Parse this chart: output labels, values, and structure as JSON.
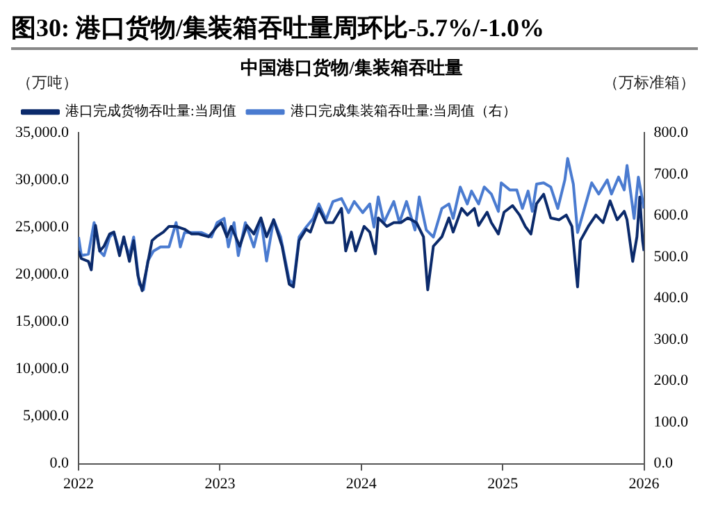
{
  "chart_data": {
    "type": "line",
    "title": "图30:  港口货物/集装箱吞吐量周环比-5.7%/-1.0%",
    "subtitle": "中国港口货物/集装箱吞吐量",
    "ylabel": "（万吨）",
    "y2label": "（万标准箱）",
    "xlim": [
      2022,
      2026
    ],
    "xticks": [
      2022,
      2023,
      2024,
      2025,
      2026
    ],
    "ylim": [
      0,
      35000
    ],
    "yticks": [
      {
        "value": 0,
        "label": "0.0"
      },
      {
        "value": 5000,
        "label": "5,000.0"
      },
      {
        "value": 10000,
        "label": "10,000.0"
      },
      {
        "value": 15000,
        "label": "15,000.0"
      },
      {
        "value": 20000,
        "label": "20,000.0"
      },
      {
        "value": 25000,
        "label": "25,000.0"
      },
      {
        "value": 30000,
        "label": "30,000.0"
      },
      {
        "value": 35000,
        "label": "35,000.0"
      }
    ],
    "y2lim": [
      0,
      800
    ],
    "y2ticks": [
      {
        "value": 0,
        "label": "0.0"
      },
      {
        "value": 100,
        "label": "100.0"
      },
      {
        "value": 200,
        "label": "200.0"
      },
      {
        "value": 300,
        "label": "300.0"
      },
      {
        "value": 400,
        "label": "400.0"
      },
      {
        "value": 500,
        "label": "500.0"
      },
      {
        "value": 600,
        "label": "600.0"
      },
      {
        "value": 700,
        "label": "700.0"
      },
      {
        "value": 800,
        "label": "800.0"
      }
    ],
    "grid": false,
    "legend": "top",
    "marker": "none",
    "line_style": "solid",
    "series": [
      {
        "name": "港口完成货物吞吐量:当周值",
        "color": "#0b2a6b",
        "x": [
          2022.0,
          2022.02,
          2022.07,
          2022.09,
          2022.12,
          2022.15,
          2022.18,
          2022.22,
          2022.25,
          2022.29,
          2022.32,
          2022.36,
          2022.39,
          2022.42,
          2022.45,
          2022.48,
          2022.52,
          2022.55,
          2022.6,
          2022.64,
          2022.69,
          2022.75,
          2022.8,
          2022.85,
          2022.92,
          2022.98,
          2023.01,
          2023.05,
          2023.08,
          2023.14,
          2023.19,
          2023.24,
          2023.29,
          2023.33,
          2023.38,
          2023.44,
          2023.49,
          2023.52,
          2023.56,
          2023.61,
          2023.64,
          2023.7,
          2023.75,
          2023.8,
          2023.86,
          2023.89,
          2023.93,
          2023.96,
          2024.02,
          2024.06,
          2024.1,
          2024.12,
          2024.18,
          2024.23,
          2024.28,
          2024.33,
          2024.39,
          2024.44,
          2024.47,
          2024.51,
          2024.57,
          2024.62,
          2024.65,
          2024.71,
          2024.75,
          2024.8,
          2024.83,
          2024.89,
          2024.92,
          2024.97,
          2025.01,
          2025.07,
          2025.12,
          2025.16,
          2025.2,
          2025.24,
          2025.29,
          2025.34,
          2025.4,
          2025.45,
          2025.49,
          2025.53,
          2025.55,
          2025.61,
          2025.66,
          2025.71,
          2025.76,
          2025.81,
          2025.86,
          2025.88,
          2025.92,
          2025.95,
          2025.97,
          2025.99,
          2026.0
        ],
        "values": [
          22500,
          21700,
          21400,
          20500,
          25200,
          22500,
          23000,
          24300,
          24500,
          22000,
          24000,
          21400,
          23600,
          19900,
          18300,
          20500,
          23600,
          24000,
          24500,
          25100,
          25100,
          24800,
          24300,
          24300,
          24000,
          25100,
          25500,
          24000,
          25100,
          23000,
          25200,
          24300,
          26000,
          24000,
          25800,
          23000,
          19000,
          18700,
          23600,
          24800,
          24500,
          27000,
          25500,
          25500,
          27000,
          22500,
          24500,
          22500,
          25100,
          24500,
          22200,
          26000,
          25100,
          25500,
          25500,
          26000,
          25500,
          24000,
          18400,
          23000,
          24000,
          26000,
          24500,
          27000,
          26300,
          27000,
          25200,
          26600,
          25500,
          24300,
          26600,
          27300,
          26300,
          25100,
          24300,
          27500,
          28500,
          26000,
          25800,
          26300,
          25100,
          18700,
          23600,
          25200,
          26300,
          25500,
          27800,
          25800,
          26700,
          25800,
          21400,
          24000,
          28200,
          23600,
          22500
        ]
      },
      {
        "name": "港口完成集装箱吞吐量:当周值（右）",
        "color": "#4a7bd0",
        "axis": "y2",
        "x": [
          2022.0,
          2022.02,
          2022.07,
          2022.11,
          2022.15,
          2022.18,
          2022.22,
          2022.25,
          2022.29,
          2022.32,
          2022.36,
          2022.39,
          2022.43,
          2022.46,
          2022.49,
          2022.53,
          2022.58,
          2022.64,
          2022.69,
          2022.72,
          2022.75,
          2022.8,
          2022.87,
          2022.94,
          2022.98,
          2023.03,
          2023.06,
          2023.1,
          2023.13,
          2023.18,
          2023.24,
          2023.29,
          2023.33,
          2023.38,
          2023.43,
          2023.49,
          2023.52,
          2023.56,
          2023.61,
          2023.66,
          2023.7,
          2023.75,
          2023.8,
          2023.86,
          2023.91,
          2023.95,
          2024.01,
          2024.06,
          2024.09,
          2024.12,
          2024.16,
          2024.23,
          2024.27,
          2024.32,
          2024.38,
          2024.41,
          2024.46,
          2024.51,
          2024.57,
          2024.62,
          2024.65,
          2024.7,
          2024.75,
          2024.78,
          2024.83,
          2024.87,
          2024.92,
          2024.97,
          2024.99,
          2025.05,
          2025.1,
          2025.14,
          2025.18,
          2025.21,
          2025.24,
          2025.29,
          2025.34,
          2025.39,
          2025.44,
          2025.46,
          2025.5,
          2025.53,
          2025.57,
          2025.63,
          2025.68,
          2025.74,
          2025.77,
          2025.82,
          2025.86,
          2025.88,
          2025.93,
          2025.96,
          2026.0
        ],
        "values": [
          548,
          503,
          507,
          583,
          514,
          503,
          548,
          559,
          514,
          541,
          503,
          548,
          434,
          421,
          490,
          514,
          524,
          524,
          583,
          524,
          559,
          559,
          559,
          548,
          583,
          593,
          524,
          583,
          503,
          583,
          524,
          593,
          490,
          590,
          548,
          445,
          434,
          548,
          572,
          593,
          628,
          590,
          634,
          641,
          607,
          634,
          607,
          628,
          572,
          645,
          583,
          634,
          583,
          634,
          565,
          645,
          565,
          548,
          617,
          628,
          593,
          669,
          628,
          659,
          628,
          669,
          652,
          610,
          679,
          662,
          662,
          617,
          659,
          610,
          676,
          679,
          669,
          617,
          686,
          738,
          676,
          559,
          607,
          679,
          652,
          686,
          652,
          693,
          662,
          721,
          593,
          693,
          617
        ]
      }
    ]
  }
}
